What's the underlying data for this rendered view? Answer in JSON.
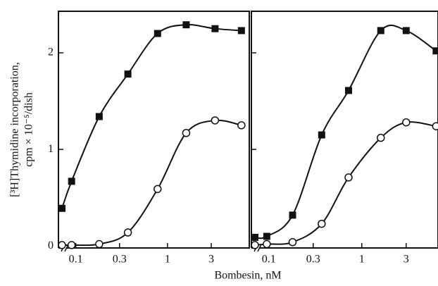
{
  "chart_data": [
    {
      "type": "line",
      "xscale": "log",
      "y_label": [
        "[³H]Thymidine incorporation,",
        "cpm × 10⁻⁵/dish"
      ],
      "x_label": "Bombesin, nM",
      "x": [
        0,
        0.09,
        0.18,
        0.37,
        0.78,
        1.6,
        3.3,
        6.4
      ],
      "xlim": [
        0.08,
        7.8
      ],
      "xticks": [
        0.1,
        0.3,
        1,
        3
      ],
      "ylim": [
        -0.02,
        2.43
      ],
      "yticks": [
        0,
        1,
        2
      ],
      "series": [
        {
          "marker": "square",
          "color": "#111",
          "values": [
            0.39,
            0.67,
            1.34,
            1.78,
            2.2,
            2.29,
            2.25,
            2.23
          ]
        },
        {
          "marker": "circle",
          "color": "#111",
          "values": [
            0.01,
            0.01,
            0.02,
            0.14,
            0.59,
            1.17,
            1.3,
            1.25
          ]
        }
      ]
    },
    {
      "type": "line",
      "xscale": "log",
      "x": [
        0,
        0.095,
        0.18,
        0.37,
        0.72,
        1.6,
        3.0,
        6.3
      ],
      "xlim": [
        0.08,
        6.6
      ],
      "xticks": [
        0.1,
        0.3,
        1,
        3
      ],
      "ylim": [
        -0.02,
        2.43
      ],
      "yticks": [
        0,
        1,
        2
      ],
      "series": [
        {
          "marker": "square",
          "color": "#111",
          "values": [
            0.09,
            0.1,
            0.32,
            1.15,
            1.61,
            2.23,
            2.23,
            2.02
          ]
        },
        {
          "marker": "circle",
          "color": "#111",
          "values": [
            0.01,
            0.02,
            0.04,
            0.23,
            0.71,
            1.12,
            1.28,
            1.24
          ]
        }
      ]
    }
  ]
}
